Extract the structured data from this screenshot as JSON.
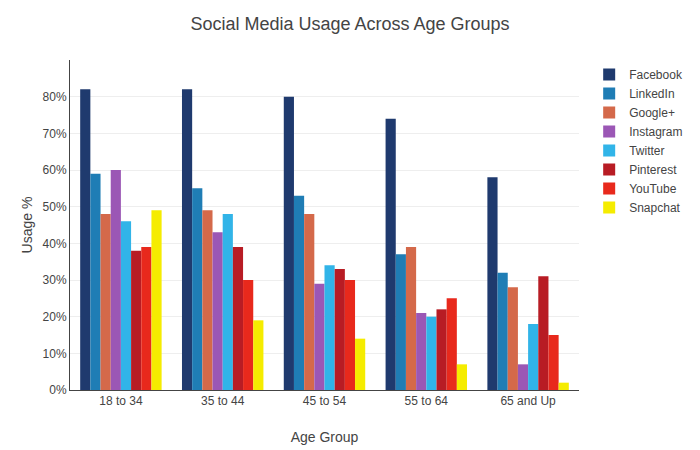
{
  "chart_data": {
    "type": "bar",
    "title": "Social Media Usage Across Age Groups",
    "xlabel": "Age Group",
    "ylabel": "Usage %",
    "categories": [
      "18 to 34",
      "35 to 44",
      "45 to 54",
      "55 to 64",
      "65 and Up"
    ],
    "series": [
      {
        "name": "Facebook",
        "color": "#1f3a6e",
        "values": [
          82,
          82,
          80,
          74,
          58
        ]
      },
      {
        "name": "LinkedIn",
        "color": "#1f7db5",
        "values": [
          59,
          55,
          53,
          37,
          32
        ]
      },
      {
        "name": "Google+",
        "color": "#d4694a",
        "values": [
          48,
          49,
          48,
          39,
          28
        ]
      },
      {
        "name": "Instagram",
        "color": "#9b57b5",
        "values": [
          60,
          43,
          29,
          21,
          7
        ]
      },
      {
        "name": "Twitter",
        "color": "#31b4e8",
        "values": [
          46,
          48,
          34,
          20,
          18
        ]
      },
      {
        "name": "Pinterest",
        "color": "#b81c24",
        "values": [
          38,
          39,
          33,
          22,
          31
        ]
      },
      {
        "name": "YouTube",
        "color": "#e8291c",
        "values": [
          39,
          30,
          30,
          25,
          15
        ]
      },
      {
        "name": "Snapchat",
        "color": "#f5ec00",
        "values": [
          49,
          19,
          14,
          7,
          2
        ]
      }
    ],
    "ylim": [
      0,
      90
    ],
    "yticks": [
      {
        "value": 0,
        "label": "0%"
      },
      {
        "value": 10,
        "label": "10%"
      },
      {
        "value": 20,
        "label": "20%"
      },
      {
        "value": 30,
        "label": "30%"
      },
      {
        "value": 40,
        "label": "40%"
      },
      {
        "value": 50,
        "label": "50%"
      },
      {
        "value": 60,
        "label": "60%"
      },
      {
        "value": 70,
        "label": "70%"
      },
      {
        "value": 80,
        "label": "80%"
      }
    ],
    "grid": true,
    "legend": "upper right"
  }
}
